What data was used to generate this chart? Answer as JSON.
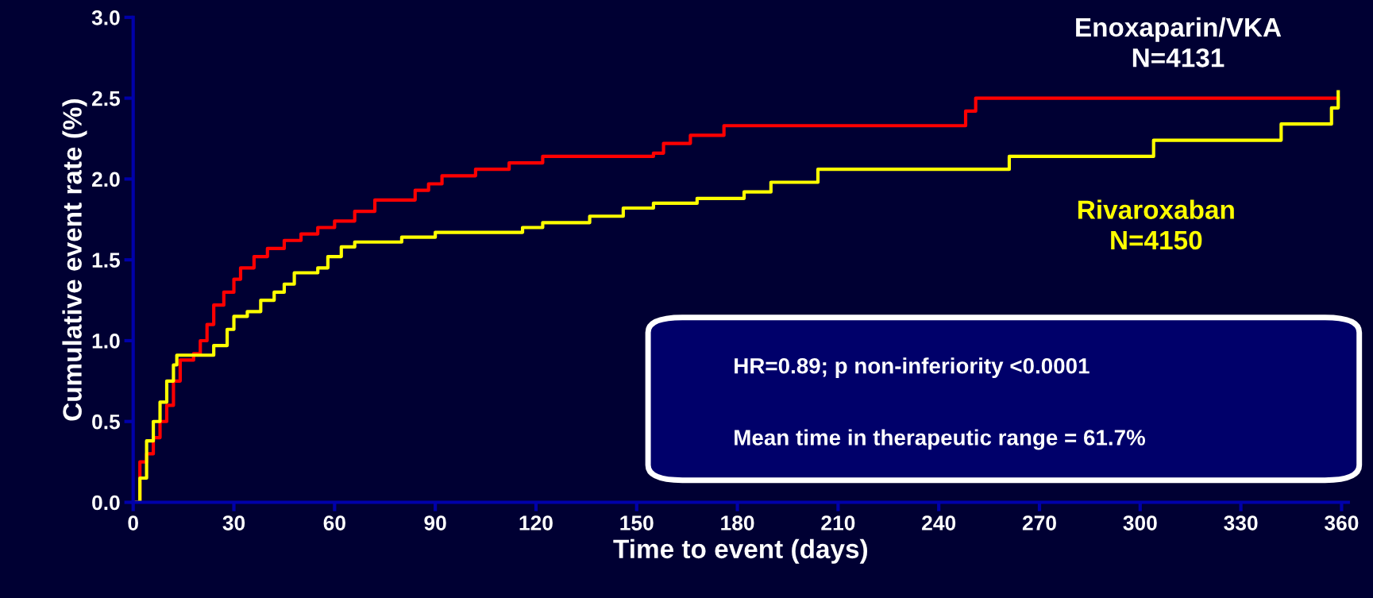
{
  "chart_data": {
    "type": "step",
    "xlabel": "Time to event (days)",
    "ylabel": "Cumulative event rate (%)",
    "series": [
      {
        "name": "Enoxaparin/VKA\nN=4131",
        "color": "#ff0000",
        "x": [
          0,
          2,
          4,
          6,
          8,
          10,
          12,
          14,
          18,
          20,
          22,
          24,
          27,
          30,
          32,
          36,
          40,
          45,
          50,
          55,
          60,
          66,
          72,
          84,
          88,
          92,
          102,
          112,
          122,
          155,
          158,
          166,
          176,
          248,
          251,
          359
        ],
        "values": [
          0,
          0.25,
          0.3,
          0.4,
          0.5,
          0.6,
          0.75,
          0.88,
          0.92,
          1.0,
          1.1,
          1.22,
          1.3,
          1.38,
          1.45,
          1.52,
          1.57,
          1.62,
          1.66,
          1.7,
          1.74,
          1.8,
          1.87,
          1.93,
          1.97,
          2.02,
          2.06,
          2.1,
          2.14,
          2.16,
          2.22,
          2.27,
          2.33,
          2.42,
          2.5,
          2.5
        ]
      },
      {
        "name": "Rivaroxaban\nN=4150",
        "color": "#ffff00",
        "x": [
          0,
          2,
          4,
          6,
          8,
          10,
          12,
          13,
          24,
          28,
          30,
          34,
          38,
          42,
          45,
          48,
          55,
          58,
          62,
          66,
          80,
          90,
          116,
          122,
          136,
          146,
          155,
          168,
          182,
          190,
          204,
          261,
          304,
          342,
          357,
          359
        ],
        "values": [
          0,
          0.15,
          0.38,
          0.5,
          0.62,
          0.75,
          0.85,
          0.91,
          0.97,
          1.07,
          1.15,
          1.18,
          1.25,
          1.3,
          1.35,
          1.42,
          1.45,
          1.52,
          1.58,
          1.61,
          1.64,
          1.67,
          1.7,
          1.73,
          1.77,
          1.82,
          1.85,
          1.88,
          1.92,
          1.98,
          2.06,
          2.14,
          2.24,
          2.34,
          2.44,
          2.54
        ]
      }
    ],
    "xlim": [
      0,
      362
    ],
    "xticks": [
      0,
      30,
      60,
      90,
      120,
      150,
      180,
      210,
      240,
      270,
      300,
      330,
      360
    ],
    "ylim": [
      0,
      3.0
    ],
    "yticks": [
      {
        "value": 0,
        "label": "0.0"
      },
      {
        "value": 0.5,
        "label": "0.5"
      },
      {
        "value": 1,
        "label": "1.0"
      },
      {
        "value": 1.5,
        "label": "1.5"
      },
      {
        "value": 2,
        "label": "2.0"
      },
      {
        "value": 2.5,
        "label": "2.5"
      },
      {
        "value": 3,
        "label": "3.0"
      }
    ],
    "grid": false,
    "legend": false,
    "annotations": [
      "HR=0.89; p non-inferiority <0.0001",
      "Mean time in therapeutic range = 61.7%"
    ]
  }
}
